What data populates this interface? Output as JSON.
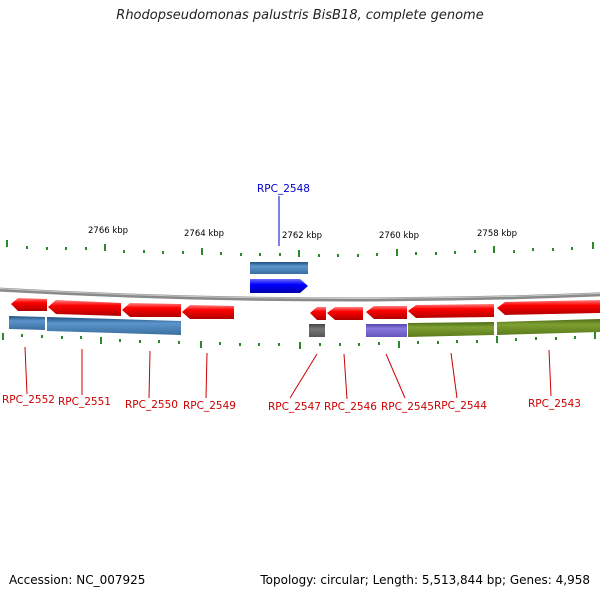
{
  "title": "Rhodopseudomonas palustris BisB18, complete genome",
  "footer": {
    "accession": "Accession: NC_007925",
    "summary": "Topology: circular; Length: 5,513,844 bp; Genes: 4,958"
  },
  "colors": {
    "backbone": "#888888",
    "tick": "#2a8a2a",
    "red_gene": "#ff0000",
    "blue_forward": "#0000ff",
    "steelblue": "#4f86bb",
    "olive": "#6b8e23",
    "purple": "#7766cc",
    "grey": "#666666",
    "label_red": "#cc0000",
    "label_blue": "#0000cc"
  },
  "scale_labels": [
    "2766 kbp",
    "2764 kbp",
    "2762 kbp",
    "2760 kbp",
    "2758 kbp"
  ],
  "genes": [
    {
      "label": "RPC_2548",
      "color": "blue"
    },
    {
      "label": "RPC_2552",
      "color": "red"
    },
    {
      "label": "RPC_2551",
      "color": "red"
    },
    {
      "label": "RPC_2550",
      "color": "red"
    },
    {
      "label": "RPC_2549",
      "color": "red"
    },
    {
      "label": "RPC_2547",
      "color": "red"
    },
    {
      "label": "RPC_2546",
      "color": "red"
    },
    {
      "label": "RPC_2545",
      "color": "red"
    },
    {
      "label": "RPC_2544",
      "color": "red"
    },
    {
      "label": "RPC_2543",
      "color": "red"
    }
  ]
}
